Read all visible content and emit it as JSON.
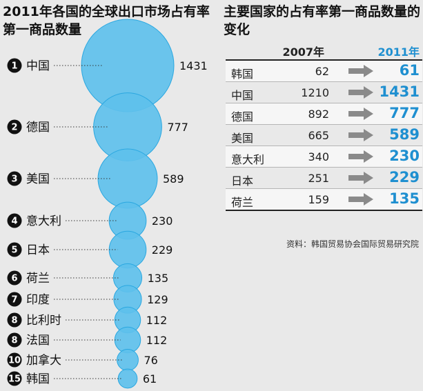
{
  "left_title": "2011年各国的全球出口市场占有率第一商品数量",
  "right_title": "主要国家的占有率第一商品数量的变化",
  "colors": {
    "bubble": "#2aa7e0",
    "bubble_light": "#5ec0ec",
    "accent": "#1e8fd0",
    "arrow": "#8a8a8a"
  },
  "chart_data": [
    {
      "type": "bubble",
      "title": "2011年各国的全球出口市场占有率第一商品数量",
      "categories": [
        "中国",
        "德国",
        "美国",
        "意大利",
        "日本",
        "荷兰",
        "印度",
        "比利时",
        "法国",
        "加拿大",
        "韩国"
      ],
      "ranks": [
        "1",
        "2",
        "3",
        "4",
        "5",
        "6",
        "7",
        "8",
        "8",
        "10",
        "15"
      ],
      "values": [
        1431,
        777,
        589,
        230,
        229,
        135,
        129,
        112,
        112,
        76,
        61
      ]
    },
    {
      "type": "table",
      "title": "主要国家的占有率第一商品数量的变化",
      "columns": [
        "",
        "2007年",
        "",
        "2011年"
      ],
      "rows": [
        {
          "name": "韩国",
          "v2007": "62",
          "v2011": "61"
        },
        {
          "name": "中国",
          "v2007": "1210",
          "v2011": "1431"
        },
        {
          "name": "德国",
          "v2007": "892",
          "v2011": "777"
        },
        {
          "name": "美国",
          "v2007": "665",
          "v2011": "589"
        },
        {
          "name": "意大利",
          "v2007": "340",
          "v2011": "230"
        },
        {
          "name": "日本",
          "v2007": "251",
          "v2011": "229"
        },
        {
          "name": "荷兰",
          "v2007": "159",
          "v2011": "135"
        }
      ]
    }
  ],
  "source": "资料：韩国贸易协会国际贸易研究院"
}
